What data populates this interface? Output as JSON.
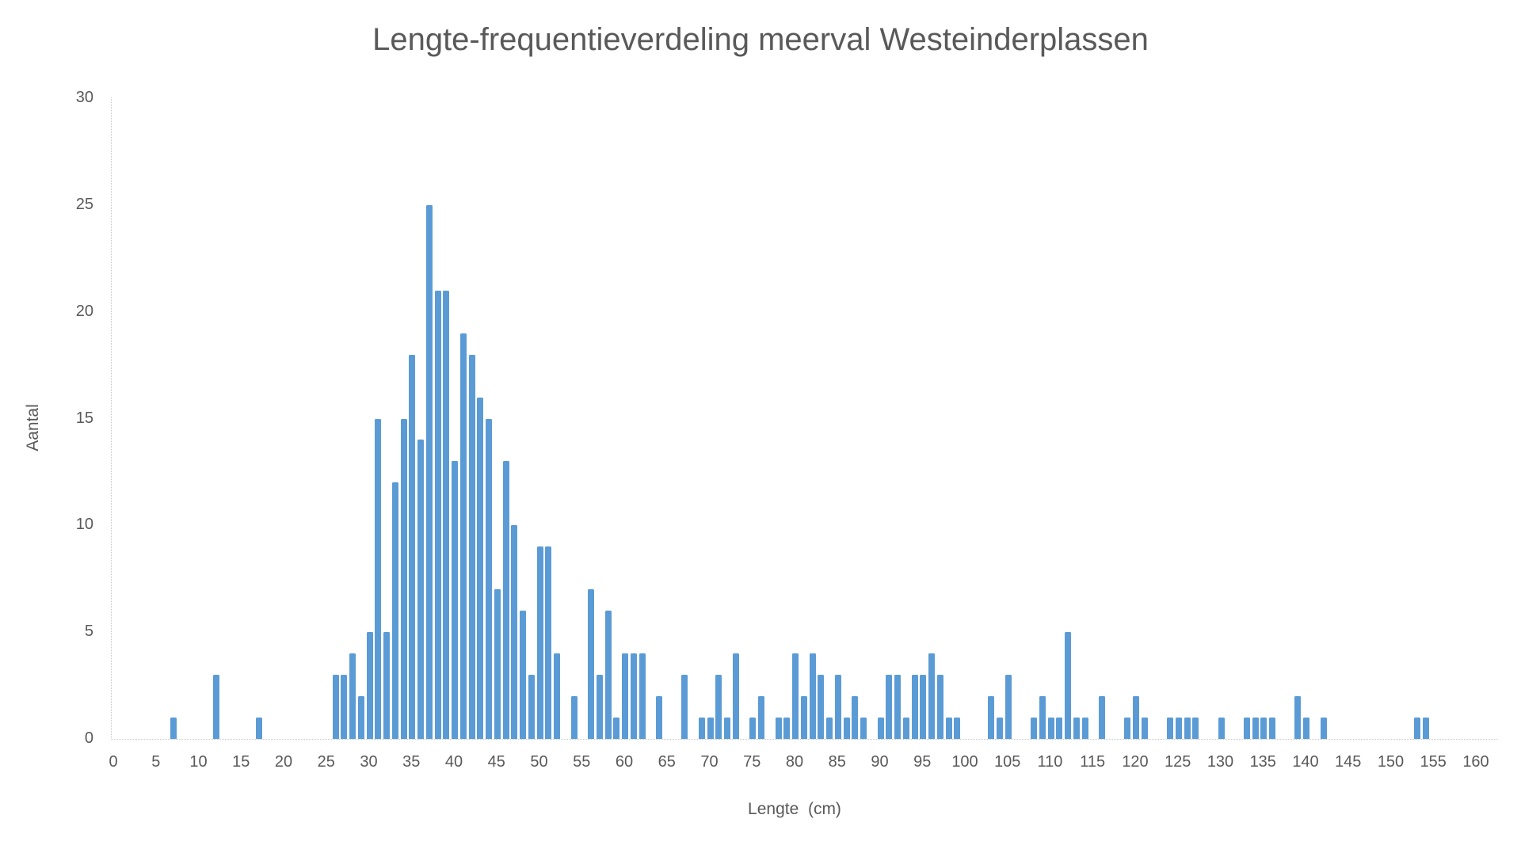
{
  "title": "Lengte-frequentieverdeling meerval Westeinderplassen",
  "chart_data": {
    "type": "bar",
    "title": "Lengte-frequentieverdeling meerval Westeinderplassen",
    "xlabel": "Lengte  (cm)",
    "ylabel": "Aantal",
    "xlim": [
      0,
      160
    ],
    "ylim": [
      0,
      30
    ],
    "x_tick_step": 5,
    "x_ticks": [
      0,
      5,
      10,
      15,
      20,
      25,
      30,
      35,
      40,
      45,
      50,
      55,
      60,
      65,
      70,
      75,
      80,
      85,
      90,
      95,
      100,
      105,
      110,
      115,
      120,
      125,
      130,
      135,
      140,
      145,
      150,
      155,
      160
    ],
    "y_ticks": [
      0,
      5,
      10,
      15,
      20,
      25,
      30
    ],
    "grid": false,
    "legend": "none",
    "bar_color": "#5b9bd5",
    "axis_color": "#c6c6c6",
    "text_color": "#595959",
    "x": [
      7,
      12,
      17,
      26,
      27,
      28,
      29,
      30,
      31,
      32,
      33,
      34,
      35,
      36,
      37,
      38,
      39,
      40,
      41,
      42,
      43,
      44,
      45,
      46,
      47,
      48,
      49,
      50,
      51,
      52,
      54,
      56,
      57,
      58,
      59,
      60,
      61,
      62,
      64,
      67,
      69,
      70,
      71,
      72,
      73,
      75,
      76,
      78,
      79,
      80,
      81,
      82,
      83,
      84,
      85,
      86,
      87,
      88,
      90,
      91,
      92,
      93,
      94,
      95,
      96,
      97,
      98,
      99,
      103,
      104,
      105,
      108,
      109,
      110,
      111,
      112,
      113,
      114,
      116,
      119,
      120,
      121,
      124,
      125,
      126,
      127,
      130,
      133,
      134,
      135,
      136,
      139,
      140,
      142,
      153,
      154
    ],
    "values": [
      1,
      3,
      1,
      3,
      3,
      4,
      2,
      5,
      15,
      5,
      12,
      15,
      18,
      14,
      25,
      21,
      21,
      13,
      19,
      18,
      16,
      15,
      7,
      13,
      10,
      6,
      3,
      9,
      9,
      4,
      2,
      7,
      3,
      6,
      1,
      4,
      4,
      4,
      2,
      3,
      1,
      1,
      3,
      1,
      4,
      1,
      2,
      1,
      1,
      4,
      2,
      4,
      3,
      1,
      3,
      1,
      2,
      1,
      1,
      3,
      3,
      1,
      3,
      3,
      4,
      3,
      1,
      1,
      2,
      1,
      3,
      1,
      2,
      1,
      1,
      5,
      1,
      1,
      2,
      1,
      2,
      1,
      1,
      1,
      1,
      1,
      1,
      1,
      1,
      1,
      1,
      2,
      1,
      1,
      1,
      1
    ]
  }
}
